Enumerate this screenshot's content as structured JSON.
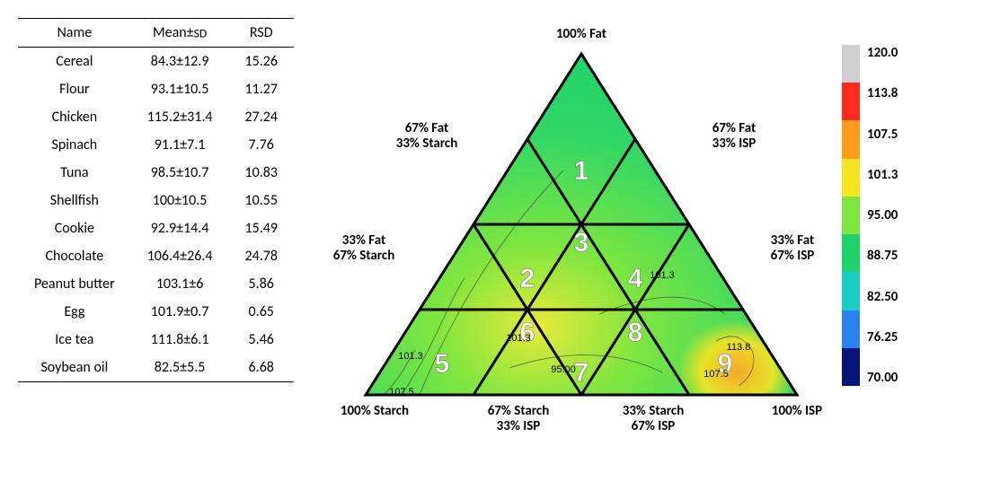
{
  "table": {
    "headers": {
      "name": "Name",
      "mean": "Mean±",
      "sd": "SD",
      "rsd": "RSD"
    },
    "rows": [
      {
        "name": "Cereal",
        "mean": "84.3±12.9",
        "rsd": "15.26"
      },
      {
        "name": "Flour",
        "mean": "93.1±10.5",
        "rsd": "11.27"
      },
      {
        "name": "Chicken",
        "mean": "115.2±31.4",
        "rsd": "27.24"
      },
      {
        "name": "Spinach",
        "mean": "91.1±7.1",
        "rsd": "7.76"
      },
      {
        "name": "Tuna",
        "mean": "98.5±10.7",
        "rsd": "10.83"
      },
      {
        "name": "Shellfish",
        "mean": "100±10.5",
        "rsd": "10.55"
      },
      {
        "name": "Cookie",
        "mean": "92.9±14.4",
        "rsd": "15.49"
      },
      {
        "name": "Chocolate",
        "mean": "106.4±26.4",
        "rsd": "24.78"
      },
      {
        "name": "Peanut butter",
        "mean": "103.1±6",
        "rsd": "5.86"
      },
      {
        "name": "Egg",
        "mean": "101.9±0.7",
        "rsd": "0.65"
      },
      {
        "name": "Ice tea",
        "mean": "111.8±6.1",
        "rsd": "5.46"
      },
      {
        "name": "Soybean oil",
        "mean": "82.5±5.5",
        "rsd": "6.68"
      }
    ]
  },
  "ternary": {
    "apex_top": "100% Fat",
    "left_upper": "67% Fat\n33% Starch",
    "left_lower": "33% Fat\n67% Starch",
    "right_upper": "67% Fat\n33% ISP",
    "right_lower": "33% Fat\n67% ISP",
    "apex_bl": "100% Starch",
    "apex_br": "100% ISP",
    "bottom_mid_left": "67% Starch\n33% ISP",
    "bottom_mid_right": "33% Starch\n67% ISP",
    "cell_numbers": [
      "1",
      "2",
      "3",
      "4",
      "5",
      "6",
      "7",
      "8",
      "9"
    ],
    "contour_labels": [
      "101.3",
      "101.3",
      "95.00",
      "101.3",
      "107.5",
      "113.8",
      "107.5"
    ],
    "outline_color": "#000000",
    "outline_width": 3,
    "number_color": "#ffffff",
    "number_fontsize": 30,
    "fill_gradient": {
      "left_edge": "#c7e84a",
      "center": "#33d766",
      "right_spot": "#f7a72d",
      "near_left_corner": "#e8ea3a"
    },
    "positions": {
      "apex": [
        280,
        40
      ],
      "bl": [
        40,
        420
      ],
      "br": [
        520,
        420
      ]
    }
  },
  "colorbar": {
    "ticks": [
      "120.0",
      "113.8",
      "107.5",
      "101.3",
      "95.00",
      "88.75",
      "82.50",
      "76.25",
      "70.00"
    ],
    "colors": [
      "#d0d0d0",
      "#ff2a1a",
      "#ff9a1a",
      "#f7e522",
      "#7de63f",
      "#1fd36a",
      "#19cfc5",
      "#2a82ee",
      "#07157a"
    ]
  }
}
